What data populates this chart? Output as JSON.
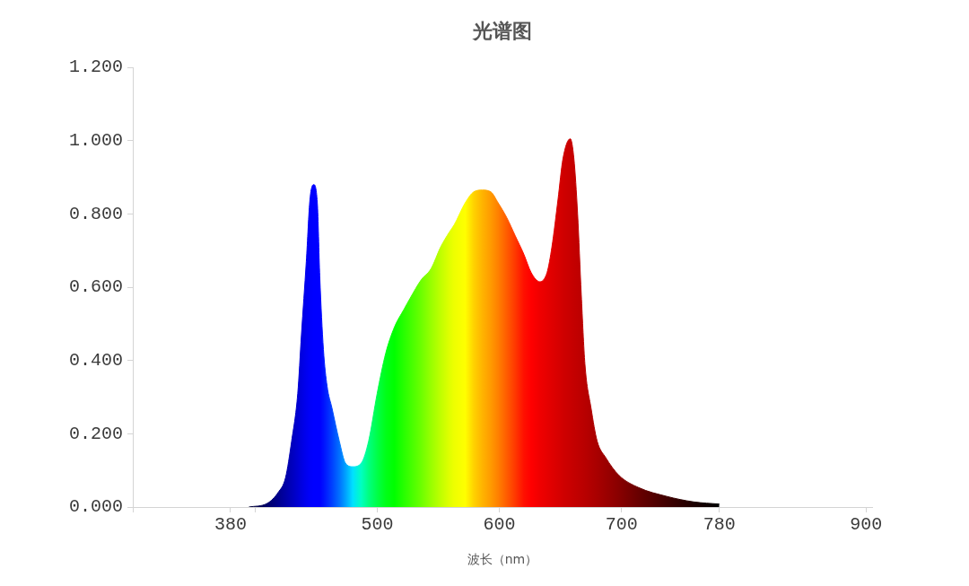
{
  "chart_data": {
    "type": "area",
    "title": "光谱图",
    "xlabel": "波长（nm）",
    "x": [
      395,
      410,
      419,
      425,
      430,
      435,
      438,
      442,
      445,
      448,
      451,
      453,
      456,
      459,
      463,
      469,
      474,
      480,
      487,
      493,
      500,
      507,
      514,
      522,
      527,
      536,
      544,
      552,
      559,
      563,
      572,
      579,
      586,
      593,
      599,
      606,
      613,
      620,
      626,
      633,
      639,
      643,
      648,
      652,
      658,
      661,
      664,
      667,
      670,
      675,
      680,
      687,
      698,
      714,
      737,
      759,
      780
    ],
    "series": [
      {
        "values": [
          0,
          0.01,
          0.04,
          0.08,
          0.18,
          0.31,
          0.47,
          0.67,
          0.84,
          0.88,
          0.83,
          0.63,
          0.43,
          0.33,
          0.27,
          0.18,
          0.12,
          0.11,
          0.12,
          0.18,
          0.31,
          0.42,
          0.49,
          0.54,
          0.57,
          0.62,
          0.65,
          0.71,
          0.75,
          0.77,
          0.83,
          0.86,
          0.865,
          0.86,
          0.83,
          0.79,
          0.74,
          0.69,
          0.64,
          0.615,
          0.64,
          0.71,
          0.84,
          0.95,
          1.005,
          0.95,
          0.8,
          0.58,
          0.39,
          0.27,
          0.18,
          0.135,
          0.086,
          0.053,
          0.029,
          0.014,
          0.008
        ],
        "colors": [
          "#000030",
          "#000068",
          "#00008c",
          "#0000a6",
          "#0000bc",
          "#0000d2",
          "#0000e0",
          "#0000f0",
          "#0000fa",
          "#0000ff",
          "#0000ff",
          "#0000ff",
          "#0010ff",
          "#0024ff",
          "#0040ff",
          "#0070ff",
          "#00a0ff",
          "#00e0ff",
          "#00ffc0",
          "#00ff80",
          "#00ff48",
          "#00ff18",
          "#00ff00",
          "#28ff00",
          "#40ff00",
          "#6cff00",
          "#98ff00",
          "#c0ff00",
          "#e0ff00",
          "#eeff00",
          "#ffff00",
          "#ffd200",
          "#ffb400",
          "#ff9a00",
          "#ff8000",
          "#ff5c00",
          "#ff3800",
          "#ff1000",
          "#ff0000",
          "#f00000",
          "#e60000",
          "#e00000",
          "#d80000",
          "#d00000",
          "#c80000",
          "#c40000",
          "#c00000",
          "#bc0000",
          "#b80000",
          "#b00000",
          "#a80000",
          "#9c0000",
          "#880000",
          "#680000",
          "#400000",
          "#1c0000",
          "#000000"
        ]
      }
    ],
    "xlim": [
      300,
      905
    ],
    "xticks": [
      {
        "value": 300,
        "label": null
      },
      380,
      {
        "value": 400,
        "label": null
      },
      500,
      600,
      700,
      780,
      900
    ],
    "ylim": [
      0,
      1.2
    ],
    "yticks": [
      {
        "value": 0,
        "label": "0.000"
      },
      {
        "value": 0.2,
        "label": "0.200"
      },
      {
        "value": 0.4,
        "label": "0.400"
      },
      {
        "value": 0.6,
        "label": "0.600"
      },
      {
        "value": 0.8,
        "label": "0.800"
      },
      {
        "value": 1.0,
        "label": "1.000"
      },
      {
        "value": 1.2,
        "label": "1.200"
      }
    ]
  }
}
